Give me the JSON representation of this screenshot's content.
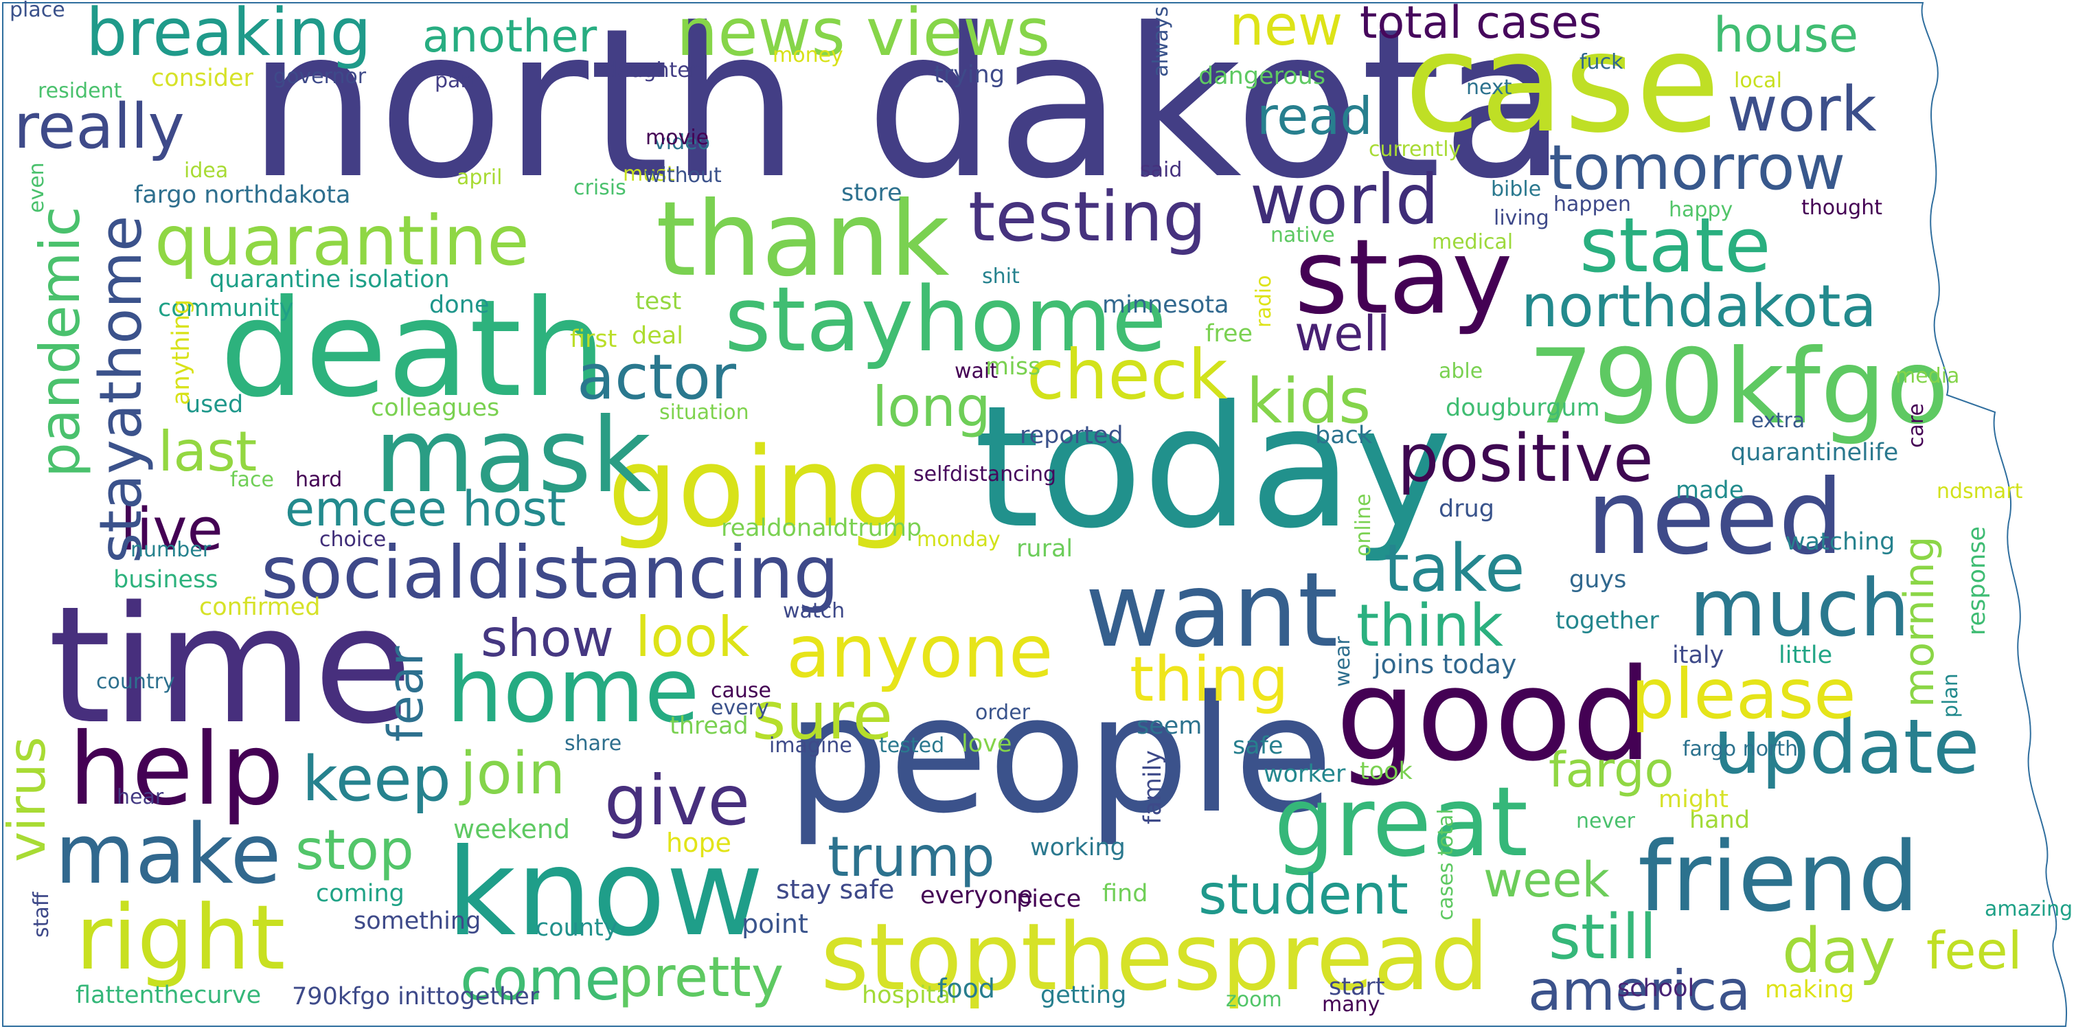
{
  "outline_color": "#2f6e9e",
  "words": [
    {
      "text": "north dakota",
      "color": "#433e85"
    },
    {
      "text": "case",
      "color": "#bfdf25"
    },
    {
      "text": "today",
      "color": "#21918c"
    },
    {
      "text": "people",
      "color": "#3b528b"
    },
    {
      "text": "time",
      "color": "#472f7d"
    },
    {
      "text": "death",
      "color": "#2db27d"
    },
    {
      "text": "know",
      "color": "#1f9e89"
    },
    {
      "text": "good",
      "color": "#440154"
    },
    {
      "text": "thank",
      "color": "#7ad151"
    },
    {
      "text": "going",
      "color": "#d8e219"
    },
    {
      "text": "790kfgo",
      "color": "#5ec962"
    },
    {
      "text": "stay",
      "color": "#440154"
    },
    {
      "text": "mask",
      "color": "#2a9d84"
    },
    {
      "text": "want",
      "color": "#355f8d"
    },
    {
      "text": "need",
      "color": "#3e4a89"
    },
    {
      "text": "stopthespread",
      "color": "#d6e228"
    },
    {
      "text": "friend",
      "color": "#2c728e"
    },
    {
      "text": "great",
      "color": "#35b779"
    },
    {
      "text": "socialdistancing",
      "color": "#3e4989"
    },
    {
      "text": "help",
      "color": "#440154"
    },
    {
      "text": "make",
      "color": "#31688e"
    },
    {
      "text": "home",
      "color": "#25ab82"
    },
    {
      "text": "stayhome",
      "color": "#40bd72"
    },
    {
      "text": "right",
      "color": "#c8e020"
    },
    {
      "text": "breaking",
      "color": "#1f9a8a"
    },
    {
      "text": "news views",
      "color": "#86d549"
    },
    {
      "text": "quarantine",
      "color": "#8fd744"
    },
    {
      "text": "testing",
      "color": "#46327e"
    },
    {
      "text": "state",
      "color": "#29af7f"
    },
    {
      "text": "much",
      "color": "#2a788e"
    },
    {
      "text": "update",
      "color": "#277f8e"
    },
    {
      "text": "please",
      "color": "#e5e419"
    },
    {
      "text": "anyone",
      "color": "#e7e419"
    },
    {
      "text": "sure",
      "color": "#b5de2b"
    },
    {
      "text": "give",
      "color": "#472f7d"
    },
    {
      "text": "positive",
      "color": "#3e0751"
    },
    {
      "text": "world",
      "color": "#3f2d78"
    },
    {
      "text": "tomorrow",
      "color": "#38588c"
    },
    {
      "text": "northdakota",
      "color": "#238a8d"
    },
    {
      "text": "really",
      "color": "#3e4a89"
    },
    {
      "text": "work",
      "color": "#3c4f8a"
    },
    {
      "text": "take",
      "color": "#24868e"
    },
    {
      "text": "think",
      "color": "#2bb07f"
    },
    {
      "text": "kids",
      "color": "#84d44b"
    },
    {
      "text": "check",
      "color": "#d2e21b"
    },
    {
      "text": "actor",
      "color": "#2a788e"
    },
    {
      "text": "keep",
      "color": "#26828e"
    },
    {
      "text": "join",
      "color": "#84d44b"
    },
    {
      "text": "stop",
      "color": "#52c569"
    },
    {
      "text": "trump",
      "color": "#2c728e"
    },
    {
      "text": "come",
      "color": "#3fbc73"
    },
    {
      "text": "pretty",
      "color": "#5ec962"
    },
    {
      "text": "america",
      "color": "#3b528b"
    },
    {
      "text": "still",
      "color": "#35b779"
    },
    {
      "text": "day",
      "color": "#a0da39"
    },
    {
      "text": "feel",
      "color": "#c0df25"
    },
    {
      "text": "week",
      "color": "#6ccd5a"
    },
    {
      "text": "student",
      "color": "#1f988b"
    },
    {
      "text": "fargo",
      "color": "#90d743"
    },
    {
      "text": "thing",
      "color": "#efe51c"
    },
    {
      "text": "look",
      "color": "#dde318"
    },
    {
      "text": "show",
      "color": "#453781"
    },
    {
      "text": "live",
      "color": "#440154"
    },
    {
      "text": "last",
      "color": "#93d741"
    },
    {
      "text": "emcee host",
      "color": "#238a8d"
    },
    {
      "text": "long",
      "color": "#6ece58"
    },
    {
      "text": "well",
      "color": "#482173"
    },
    {
      "text": "another",
      "color": "#27ad81"
    },
    {
      "text": "total cases",
      "color": "#46085c"
    },
    {
      "text": "new",
      "color": "#dde318"
    },
    {
      "text": "house",
      "color": "#40bd72"
    },
    {
      "text": "read",
      "color": "#277f8e"
    },
    {
      "text": "stayathome",
      "color": "#3b528b"
    },
    {
      "text": "pandemic",
      "color": "#4ac16d"
    },
    {
      "text": "virus",
      "color": "#a8db34"
    },
    {
      "text": "fear",
      "color": "#2d708e"
    },
    {
      "text": "morning",
      "color": "#8bd646"
    },
    {
      "text": "fargo northdakota",
      "color": "#2e6f8e"
    },
    {
      "text": "quarantine isolation",
      "color": "#1fa088"
    },
    {
      "text": "flattenthecurve",
      "color": "#35b779"
    },
    {
      "text": "790kfgo inittogether",
      "color": "#3e4a89"
    },
    {
      "text": "hospital",
      "color": "#a2da37"
    },
    {
      "text": "getting",
      "color": "#277f8e"
    },
    {
      "text": "zoom",
      "color": "#52c569"
    },
    {
      "text": "food",
      "color": "#287d8e"
    },
    {
      "text": "joins today",
      "color": "#31688e"
    },
    {
      "text": "together",
      "color": "#24878e"
    },
    {
      "text": "little",
      "color": "#21a585"
    },
    {
      "text": "italy",
      "color": "#3e4a89"
    },
    {
      "text": "guys",
      "color": "#31688e"
    },
    {
      "text": "watching",
      "color": "#26828e"
    },
    {
      "text": "made",
      "color": "#228c8d"
    },
    {
      "text": "quarantinelife",
      "color": "#2a788e"
    },
    {
      "text": "dougburgum",
      "color": "#40bd72"
    },
    {
      "text": "back",
      "color": "#2c738e"
    },
    {
      "text": "drug",
      "color": "#3a548c"
    },
    {
      "text": "rural",
      "color": "#6ccd5a"
    },
    {
      "text": "realdonaldtrump",
      "color": "#7ad151"
    },
    {
      "text": "reported",
      "color": "#3b528b"
    },
    {
      "text": "situation",
      "color": "#7fd34e"
    },
    {
      "text": "selfdistancing",
      "color": "#46085c"
    },
    {
      "text": "monday",
      "color": "#d2e21b"
    },
    {
      "text": "wait",
      "color": "#440154"
    },
    {
      "text": "miss",
      "color": "#7ad151"
    },
    {
      "text": "deal",
      "color": "#addc30"
    },
    {
      "text": "first",
      "color": "#bade28"
    },
    {
      "text": "test",
      "color": "#95d840"
    },
    {
      "text": "done",
      "color": "#1f968b"
    },
    {
      "text": "community",
      "color": "#1fa187"
    },
    {
      "text": "used",
      "color": "#1f988b"
    },
    {
      "text": "colleagues",
      "color": "#7ad151"
    },
    {
      "text": "anything",
      "color": "#d8e219"
    },
    {
      "text": "face",
      "color": "#70cf57"
    },
    {
      "text": "hard",
      "color": "#440154"
    },
    {
      "text": "choice",
      "color": "#3f2d78"
    },
    {
      "text": "number",
      "color": "#26828e"
    },
    {
      "text": "business",
      "color": "#2db27d"
    },
    {
      "text": "confirmed",
      "color": "#d6e228"
    },
    {
      "text": "country",
      "color": "#2d708e"
    },
    {
      "text": "hear",
      "color": "#443a83"
    },
    {
      "text": "staff",
      "color": "#3e4989"
    },
    {
      "text": "coming",
      "color": "#20a386"
    },
    {
      "text": "something",
      "color": "#3e4a89"
    },
    {
      "text": "county",
      "color": "#21918c"
    },
    {
      "text": "point",
      "color": "#3a548c"
    },
    {
      "text": "hope",
      "color": "#e2e418"
    },
    {
      "text": "weekend",
      "color": "#5ec962"
    },
    {
      "text": "stay safe",
      "color": "#3e4989"
    },
    {
      "text": "everyone",
      "color": "#440154"
    },
    {
      "text": "piece",
      "color": "#440154"
    },
    {
      "text": "find",
      "color": "#70cf57"
    },
    {
      "text": "working",
      "color": "#2a788e"
    },
    {
      "text": "cases total",
      "color": "#5ec962"
    },
    {
      "text": "start",
      "color": "#3f4889"
    },
    {
      "text": "many",
      "color": "#440154"
    },
    {
      "text": "school",
      "color": "#482475"
    },
    {
      "text": "making",
      "color": "#dde318"
    },
    {
      "text": "amazing",
      "color": "#1fa187"
    },
    {
      "text": "never",
      "color": "#4ac16d"
    },
    {
      "text": "hand",
      "color": "#a2da37"
    },
    {
      "text": "might",
      "color": "#d6e228"
    },
    {
      "text": "fargo north",
      "color": "#2c728e"
    },
    {
      "text": "took",
      "color": "#7ad151"
    },
    {
      "text": "worker",
      "color": "#24878e"
    },
    {
      "text": "safe",
      "color": "#277f8e"
    },
    {
      "text": "seem",
      "color": "#2c728e"
    },
    {
      "text": "family",
      "color": "#3e4a89"
    },
    {
      "text": "love",
      "color": "#84d44b"
    },
    {
      "text": "order",
      "color": "#3a548c"
    },
    {
      "text": "tested",
      "color": "#2a788e"
    },
    {
      "text": "imagine",
      "color": "#3e4a89"
    },
    {
      "text": "thread",
      "color": "#7ad151"
    },
    {
      "text": "every",
      "color": "#3b528b"
    },
    {
      "text": "cause",
      "color": "#440154"
    },
    {
      "text": "share",
      "color": "#2e6f8e"
    },
    {
      "text": "watch",
      "color": "#3e4989"
    },
    {
      "text": "wear",
      "color": "#2e6f8e"
    },
    {
      "text": "online",
      "color": "#7ad151"
    },
    {
      "text": "plan",
      "color": "#238a8d"
    },
    {
      "text": "response",
      "color": "#3fbc73"
    },
    {
      "text": "ndsmart",
      "color": "#d2e21b"
    },
    {
      "text": "extra",
      "color": "#38588c"
    },
    {
      "text": "care",
      "color": "#440154"
    },
    {
      "text": "media",
      "color": "#84d44b"
    },
    {
      "text": "able",
      "color": "#7ad151"
    },
    {
      "text": "medical",
      "color": "#9dd93b"
    },
    {
      "text": "native",
      "color": "#5ec962"
    },
    {
      "text": "radio",
      "color": "#dde318"
    },
    {
      "text": "free",
      "color": "#7ad151"
    },
    {
      "text": "shit",
      "color": "#26828e"
    },
    {
      "text": "minnesota",
      "color": "#31688e"
    },
    {
      "text": "store",
      "color": "#2d708e"
    },
    {
      "text": "must",
      "color": "#c8e020"
    },
    {
      "text": "crisis",
      "color": "#4ac16d"
    },
    {
      "text": "april",
      "color": "#a8db34"
    },
    {
      "text": "idea",
      "color": "#a8db34"
    },
    {
      "text": "even",
      "color": "#4ac16d"
    },
    {
      "text": "resident",
      "color": "#4ac16d"
    },
    {
      "text": "place",
      "color": "#3b528b"
    },
    {
      "text": "consider",
      "color": "#d6e228"
    },
    {
      "text": "governor",
      "color": "#3e4a89"
    },
    {
      "text": "part",
      "color": "#433e85"
    },
    {
      "text": "daughter",
      "color": "#433e85"
    },
    {
      "text": "money",
      "color": "#d8e219"
    },
    {
      "text": "trying",
      "color": "#3e4a89"
    },
    {
      "text": "video",
      "color": "#2c738e"
    },
    {
      "text": "movie",
      "color": "#440154"
    },
    {
      "text": "without",
      "color": "#3b528b"
    },
    {
      "text": "always",
      "color": "#3a548c"
    },
    {
      "text": "dangerous",
      "color": "#5ec962"
    },
    {
      "text": "next",
      "color": "#2c728e"
    },
    {
      "text": "local",
      "color": "#c8e020"
    },
    {
      "text": "fuck",
      "color": "#31688e"
    },
    {
      "text": "said",
      "color": "#46327e"
    },
    {
      "text": "currently",
      "color": "#a8db34"
    },
    {
      "text": "bible",
      "color": "#2a788e"
    },
    {
      "text": "living",
      "color": "#3e4989"
    },
    {
      "text": "happen",
      "color": "#3e4989"
    },
    {
      "text": "happy",
      "color": "#52c569"
    },
    {
      "text": "thought",
      "color": "#440154"
    }
  ]
}
